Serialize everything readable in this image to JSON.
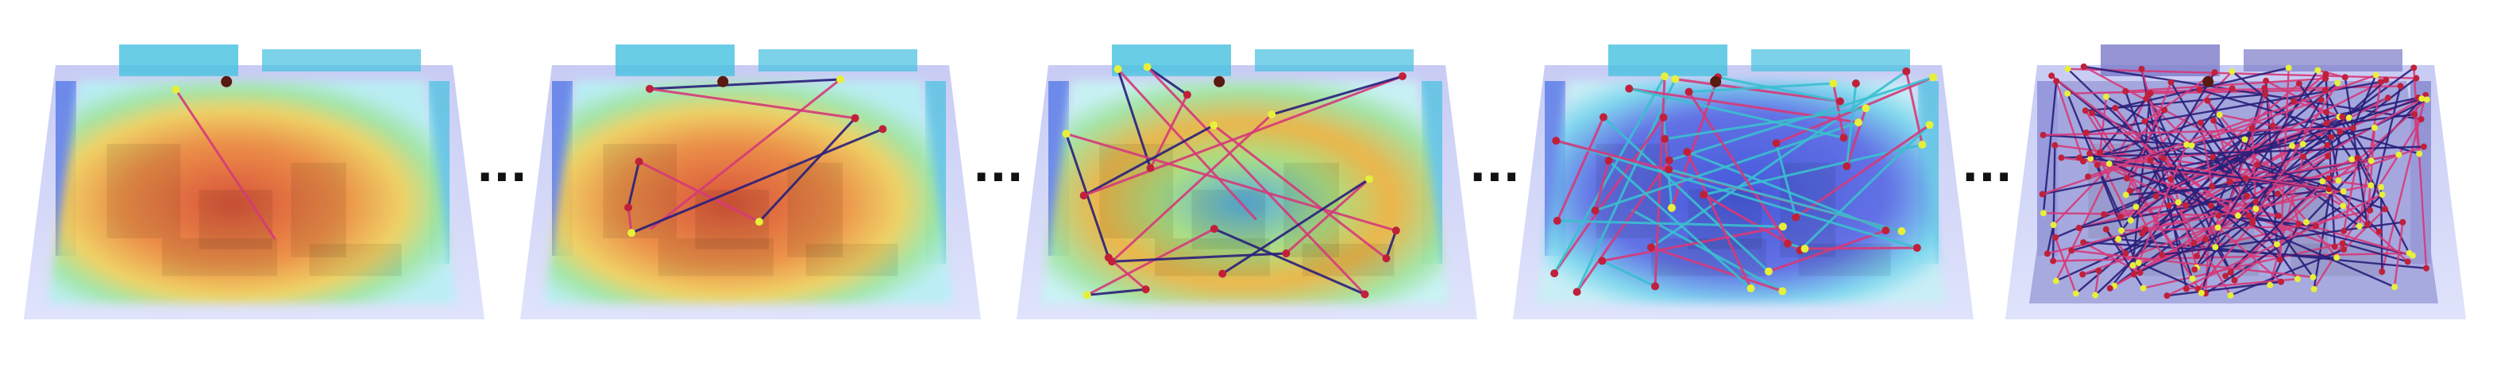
{
  "figure": {
    "panel_count": 5,
    "separator_text": "...",
    "panels": [
      {
        "name": "panel-1",
        "heatmap": "coverage-warm",
        "path_edges": 1
      },
      {
        "name": "panel-2",
        "heatmap": "coverage-warm",
        "path_edges": 8
      },
      {
        "name": "panel-3",
        "heatmap": "coverage-partial",
        "path_edges": 20
      },
      {
        "name": "panel-4",
        "heatmap": "coverage-cool",
        "path_edges": 45
      },
      {
        "name": "panel-5",
        "heatmap": "none",
        "path_edges": 200
      }
    ],
    "colors": {
      "hot": "#d9482a",
      "warm": "#f0b23a",
      "mid": "#a8e07a",
      "cool": "#5fd4e8",
      "cold": "#3a4ed8",
      "edge_pink": "#d63a7a",
      "edge_cyan": "#3bbfd0",
      "edge_navy": "#2a1f7a",
      "node_yellow": "#e6f03a",
      "node_red": "#c0203a"
    }
  }
}
